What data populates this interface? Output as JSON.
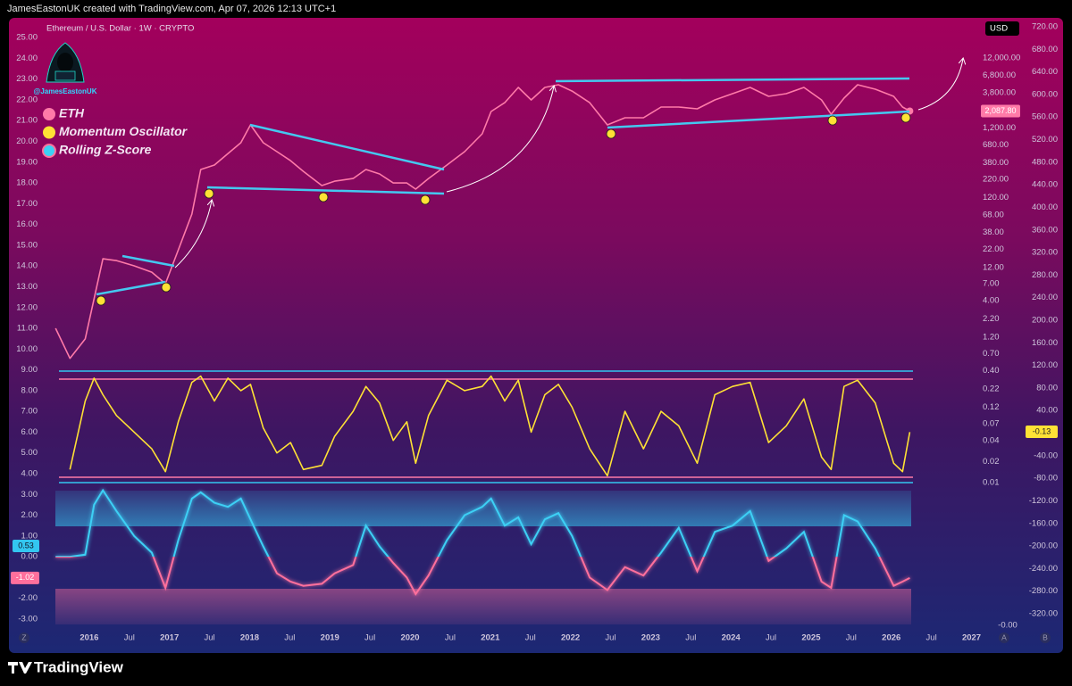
{
  "header": "JamesEastonUK created with TradingView.com, Apr 07, 2026 12:13 UTC+1",
  "footer": "TradingView",
  "handle": "@JamesEastonUK",
  "currency": "USD",
  "corner_buttons": [
    "Z",
    "A",
    "B"
  ],
  "annotations": {
    "oscillator_value": "-0.13",
    "zscore_signal": "0.53",
    "bottom_axis_label": "-0.00"
  },
  "chart_data": {
    "type": "line",
    "title": "Ethereum / U.S. Dollar · 1W · CRYPTO",
    "x": [
      2015.58,
      2015.76,
      2015.95,
      2016.06,
      2016.17,
      2016.34,
      2016.56,
      2016.78,
      2016.95,
      2017.11,
      2017.28,
      2017.39,
      2017.56,
      2017.73,
      2017.89,
      2018.01,
      2018.17,
      2018.34,
      2018.51,
      2018.67,
      2018.9,
      2019.06,
      2019.29,
      2019.45,
      2019.62,
      2019.79,
      2019.96,
      2020.07,
      2020.23,
      2020.46,
      2020.68,
      2020.9,
      2021.01,
      2021.18,
      2021.35,
      2021.51,
      2021.68,
      2021.85,
      2022.02,
      2022.24,
      2022.46,
      2022.68,
      2022.91,
      2023.13,
      2023.35,
      2023.58,
      2023.8,
      2024.02,
      2024.24,
      2024.47,
      2024.69,
      2024.91,
      2025.13,
      2025.25,
      2025.41,
      2025.58,
      2025.8,
      2026.03,
      2026.14,
      2026.23
    ],
    "series": [
      {
        "name": "ETH",
        "color": "#ff7aa8",
        "axis": "y2",
        "last_label": "2,087.80",
        "values": [
          1.62,
          0.6,
          1.14,
          4.28,
          16,
          15.1,
          12.7,
          10.3,
          7.05,
          21.5,
          69.8,
          304,
          352,
          515,
          735,
          1321,
          735,
          547,
          407,
          286,
          179,
          207,
          226,
          304,
          262,
          195,
          195,
          159,
          226,
          352,
          547,
          984,
          2056,
          2754,
          4550,
          3013,
          4550,
          4966,
          4036,
          2754,
          1321,
          1671,
          1671,
          2382,
          2382,
          2244,
          3013,
          3698,
          4550,
          3388,
          3698,
          4550,
          3013,
          1879,
          3192,
          4966,
          4285,
          3388,
          2382,
          2087.8
        ]
      },
      {
        "name": "Momentum Oscillator",
        "color": "#ffe135",
        "axis": "y",
        "values": [
          null,
          4.2,
          7.5,
          8.6,
          7.8,
          6.8,
          6.0,
          5.2,
          4.1,
          6.5,
          8.4,
          8.7,
          7.5,
          8.6,
          8.0,
          8.3,
          6.2,
          5.0,
          5.5,
          4.2,
          4.4,
          5.8,
          7.0,
          8.2,
          7.4,
          5.6,
          6.5,
          4.5,
          6.8,
          8.5,
          8.0,
          8.2,
          8.7,
          7.5,
          8.5,
          6.0,
          7.8,
          8.3,
          7.2,
          5.2,
          3.9,
          7.0,
          5.2,
          7.0,
          6.3,
          4.5,
          7.8,
          8.2,
          8.4,
          5.5,
          6.3,
          7.6,
          4.8,
          4.2,
          8.2,
          8.5,
          7.4,
          4.5,
          4.1,
          6.0
        ]
      },
      {
        "name": "Rolling Z-Score",
        "color": "#3cd0f5",
        "negative_color": "#ff6f9c",
        "axis": "y",
        "last_label": "-1.02",
        "values": [
          0,
          0,
          0.1,
          2.5,
          3.2,
          2.2,
          1.0,
          0.2,
          -1.5,
          0.8,
          2.8,
          3.1,
          2.6,
          2.4,
          2.8,
          1.8,
          0.5,
          -0.8,
          -1.2,
          -1.4,
          -1.3,
          -0.8,
          -0.4,
          1.5,
          0.5,
          -0.3,
          -1.0,
          -1.8,
          -0.9,
          0.8,
          2.0,
          2.4,
          2.8,
          1.5,
          1.9,
          0.6,
          1.8,
          2.1,
          1.0,
          -1.0,
          -1.6,
          -0.5,
          -0.9,
          0.2,
          1.4,
          -0.7,
          1.2,
          1.5,
          2.2,
          -0.2,
          0.4,
          1.2,
          -1.2,
          -1.5,
          2.0,
          1.7,
          0.4,
          -1.4,
          -1.2,
          -1.02
        ]
      }
    ],
    "xlim": [
      2015.5,
      2027.05
    ],
    "xticks": [
      2016,
      {
        "value": 2016.5,
        "label": "Jul"
      },
      2017,
      {
        "value": 2017.5,
        "label": "Jul"
      },
      2018,
      {
        "value": 2018.5,
        "label": "Jul"
      },
      2019,
      {
        "value": 2019.5,
        "label": "Jul"
      },
      2020,
      {
        "value": 2020.5,
        "label": "Jul"
      },
      2021,
      {
        "value": 2021.5,
        "label": "Jul"
      },
      2022,
      {
        "value": 2022.5,
        "label": "Jul"
      },
      2023,
      {
        "value": 2023.5,
        "label": "Jul"
      },
      2024,
      {
        "value": 2024.5,
        "label": "Jul"
      },
      2025,
      {
        "value": 2025.5,
        "label": "Jul"
      },
      2026,
      {
        "value": 2026.5,
        "label": "Jul"
      },
      2027
    ],
    "ylim": [
      -3.26,
      25.52
    ],
    "yticks": [
      {
        "value": 25,
        "label": "25.00"
      },
      {
        "value": 24,
        "label": "24.00"
      },
      {
        "value": 23,
        "label": "23.00"
      },
      {
        "value": 22,
        "label": "22.00"
      },
      {
        "value": 21,
        "label": "21.00"
      },
      {
        "value": 20,
        "label": "20.00"
      },
      {
        "value": 19,
        "label": "19.00"
      },
      {
        "value": 18,
        "label": "18.00"
      },
      {
        "value": 17,
        "label": "17.00"
      },
      {
        "value": 16,
        "label": "16.00"
      },
      {
        "value": 15,
        "label": "15.00"
      },
      {
        "value": 14,
        "label": "14.00"
      },
      {
        "value": 13,
        "label": "13.00"
      },
      {
        "value": 12,
        "label": "12.00"
      },
      {
        "value": 11,
        "label": "11.00"
      },
      {
        "value": 10,
        "label": "10.00"
      },
      {
        "value": 9,
        "label": "9.00"
      },
      {
        "value": 8,
        "label": "8.00"
      },
      {
        "value": 7,
        "label": "7.00"
      },
      {
        "value": 6,
        "label": "6.00"
      },
      {
        "value": 5,
        "label": "5.00"
      },
      {
        "value": 4,
        "label": "4.00"
      },
      {
        "value": 3,
        "label": "3.00"
      },
      {
        "value": 2,
        "label": "2.00"
      },
      {
        "value": 1,
        "label": "1.00"
      },
      {
        "value": 0,
        "label": "0.00"
      },
      {
        "value": -1,
        "label": "-1.00"
      },
      {
        "value": -2,
        "label": "-2.00"
      },
      {
        "value": -3,
        "label": "-3.00"
      }
    ],
    "y2_log": true,
    "y2lim": [
      9.3e-05,
      33600
    ],
    "y2ticks": [
      {
        "value": 12000,
        "label": "12,000.00"
      },
      {
        "value": 6800,
        "label": "6,800.00"
      },
      {
        "value": 3800,
        "label": "3,800.00"
      },
      {
        "value": 1200,
        "label": "1,200.00"
      },
      {
        "value": 680,
        "label": "680.00"
      },
      {
        "value": 380,
        "label": "380.00"
      },
      {
        "value": 220,
        "label": "220.00"
      },
      {
        "value": 120,
        "label": "120.00"
      },
      {
        "value": 68,
        "label": "68.00"
      },
      {
        "value": 38,
        "label": "38.00"
      },
      {
        "value": 22,
        "label": "22.00"
      },
      {
        "value": 12,
        "label": "12.00"
      },
      {
        "value": 7,
        "label": "7.00"
      },
      {
        "value": 4,
        "label": "4.00"
      },
      {
        "value": 2.2,
        "label": "2.20"
      },
      {
        "value": 1.2,
        "label": "1.20"
      },
      {
        "value": 0.7,
        "label": "0.70"
      },
      {
        "value": 0.4,
        "label": "0.40"
      },
      0.22,
      0.12,
      0.07,
      0.04,
      0.02,
      0.01
    ],
    "y3lim": [
      -339,
      720
    ],
    "y3ticks": [
      {
        "value": 720,
        "label": "720.00"
      },
      {
        "value": 680,
        "label": "680.00"
      },
      {
        "value": 640,
        "label": "640.00"
      },
      {
        "value": 600,
        "label": "600.00"
      },
      {
        "value": 560,
        "label": "560.00"
      },
      {
        "value": 520,
        "label": "520.00"
      },
      {
        "value": 480,
        "label": "480.00"
      },
      {
        "value": 440,
        "label": "440.00"
      },
      {
        "value": 400,
        "label": "400.00"
      },
      {
        "value": 360,
        "label": "360.00"
      },
      {
        "value": 320,
        "label": "320.00"
      },
      {
        "value": 280,
        "label": "280.00"
      },
      {
        "value": 240,
        "label": "240.00"
      },
      {
        "value": 200,
        "label": "200.00"
      },
      {
        "value": 160,
        "label": "160.00"
      },
      {
        "value": 120,
        "label": "120.00"
      },
      {
        "value": 80,
        "label": "80.00"
      },
      {
        "value": 40,
        "label": "40.00"
      },
      {
        "value": -40,
        "label": "-40.00"
      },
      {
        "value": -80,
        "label": "-80.00"
      },
      {
        "value": -120,
        "label": "-120.00"
      },
      {
        "value": -160,
        "label": "-160.00"
      },
      {
        "value": -200,
        "label": "-200.00"
      },
      {
        "value": -240,
        "label": "-240.00"
      },
      {
        "value": -280,
        "label": "-280.00"
      },
      {
        "value": -320,
        "label": "-320.00"
      }
    ],
    "grid": false
  }
}
